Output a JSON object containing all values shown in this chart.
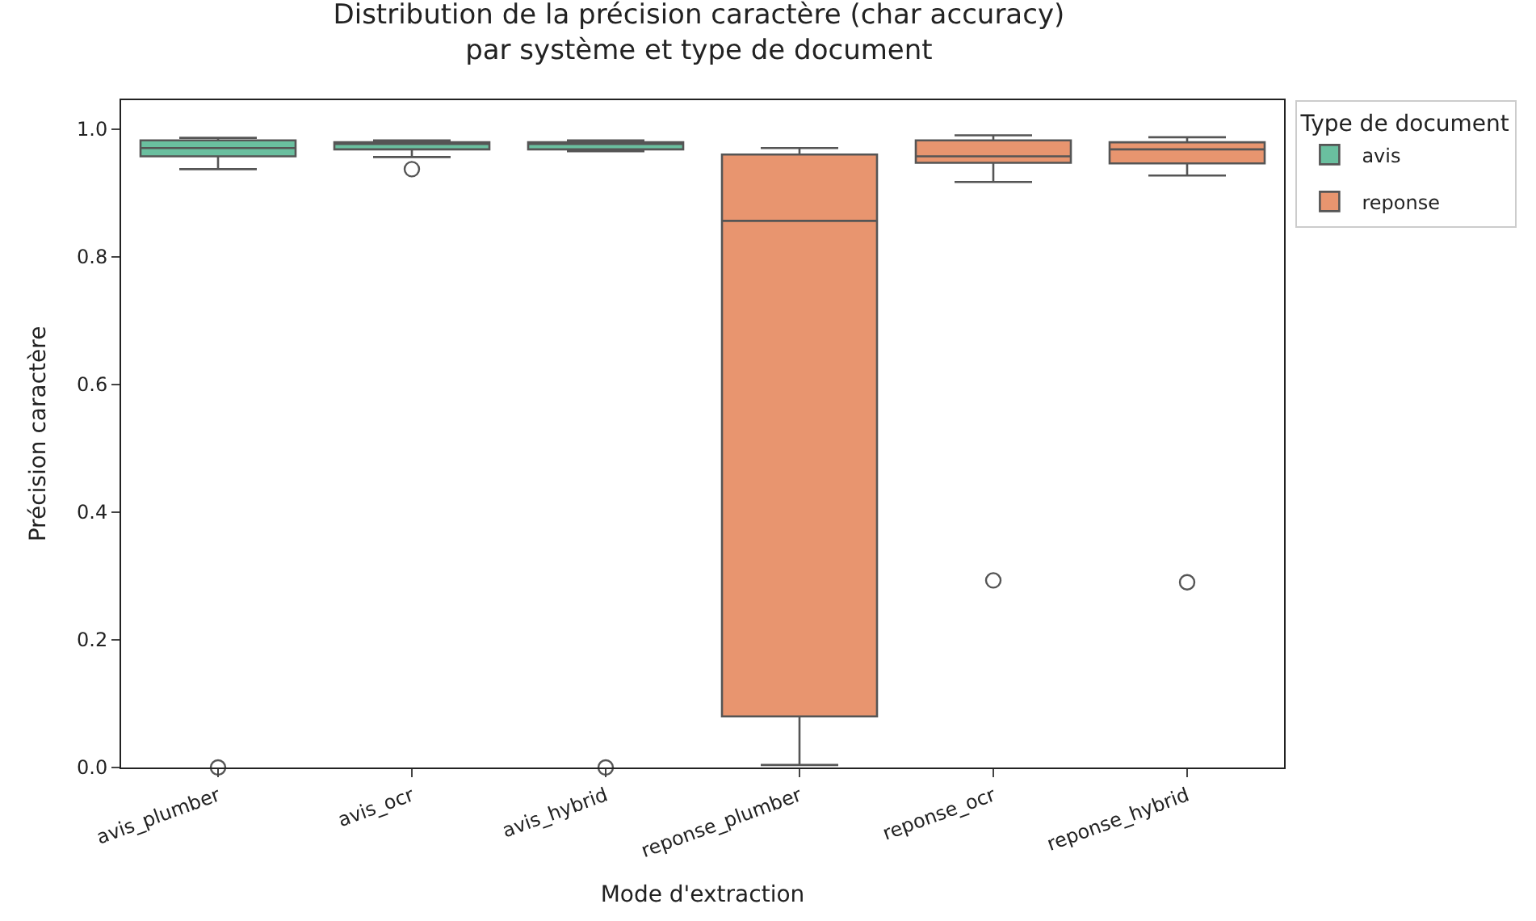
{
  "chart_data": {
    "type": "box",
    "title": "Distribution de la précision caractère (char accuracy)\npar système et type de document",
    "xlabel": "Mode d'extraction",
    "ylabel": "Précision caractère",
    "legend_title": "Type de document",
    "categories": [
      "avis_plumber",
      "avis_ocr",
      "avis_hybrid",
      "reponse_plumber",
      "reponse_ocr",
      "reponse_hybrid"
    ],
    "series": [
      {
        "name": "avis",
        "color": "#6abf9f",
        "boxes": [
          {
            "low": 0.937,
            "q1": 0.957,
            "median": 0.97,
            "q3": 0.982,
            "high": 0.986,
            "outliers": [
              0.0
            ]
          },
          {
            "low": 0.956,
            "q1": 0.968,
            "median": 0.977,
            "q3": 0.979,
            "high": 0.982,
            "outliers": [
              0.937
            ]
          },
          {
            "low": 0.965,
            "q1": 0.968,
            "median": 0.977,
            "q3": 0.979,
            "high": 0.982,
            "outliers": [
              0.0
            ]
          },
          null,
          null,
          null
        ]
      },
      {
        "name": "reponse",
        "color": "#e8956f",
        "boxes": [
          null,
          null,
          null,
          {
            "low": 0.004,
            "q1": 0.08,
            "median": 0.856,
            "q3": 0.96,
            "high": 0.97
          },
          {
            "low": 0.917,
            "q1": 0.947,
            "median": 0.957,
            "q3": 0.982,
            "high": 0.99,
            "outliers": [
              0.293
            ]
          },
          {
            "low": 0.927,
            "q1": 0.946,
            "median": 0.968,
            "q3": 0.979,
            "high": 0.987,
            "outliers": [
              0.29
            ]
          }
        ]
      }
    ],
    "ylim": [
      0,
      1.045
    ],
    "yticks": [
      {
        "value": 0,
        "label": "0.0"
      },
      {
        "value": 0.2,
        "label": "0.2"
      },
      {
        "value": 0.4,
        "label": "0.4"
      },
      {
        "value": 0.6,
        "label": "0.6"
      },
      {
        "value": 0.8,
        "label": "0.8"
      },
      {
        "value": 1.0,
        "label": "1.0"
      }
    ],
    "legend": "top right",
    "marker": "circle"
  }
}
